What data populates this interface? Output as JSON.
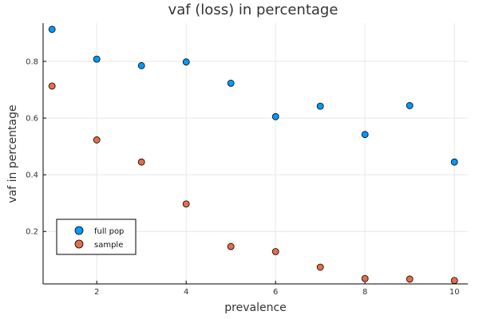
{
  "chart_data": {
    "type": "scatter",
    "title": "vaf (loss) in percentage",
    "xlabel": "prevalence",
    "ylabel": "vaf in percentage",
    "xlim": [
      0.8,
      10.3
    ],
    "ylim": [
      0.015,
      0.935
    ],
    "xticks": [
      2,
      4,
      6,
      8,
      10
    ],
    "yticks": [
      0.2,
      0.4,
      0.6,
      0.8
    ],
    "xtick_labels": [
      "2",
      "4",
      "6",
      "8",
      "10"
    ],
    "ytick_labels": [
      "0.2",
      "0.4",
      "0.6",
      "0.8"
    ],
    "grid": true,
    "legend_position": "bottom-left",
    "series": [
      {
        "name": "full pop",
        "color": "#009af9",
        "x": [
          1,
          2,
          3,
          4,
          5,
          6,
          7,
          8,
          9,
          10
        ],
        "y": [
          0.913,
          0.808,
          0.785,
          0.798,
          0.723,
          0.605,
          0.642,
          0.542,
          0.644,
          0.445
        ]
      },
      {
        "name": "sample",
        "color": "#e26f46",
        "x": [
          1,
          2,
          3,
          4,
          5,
          6,
          7,
          8,
          9,
          10
        ],
        "y": [
          0.713,
          0.523,
          0.445,
          0.297,
          0.147,
          0.129,
          0.074,
          0.034,
          0.032,
          0.027
        ]
      }
    ]
  }
}
